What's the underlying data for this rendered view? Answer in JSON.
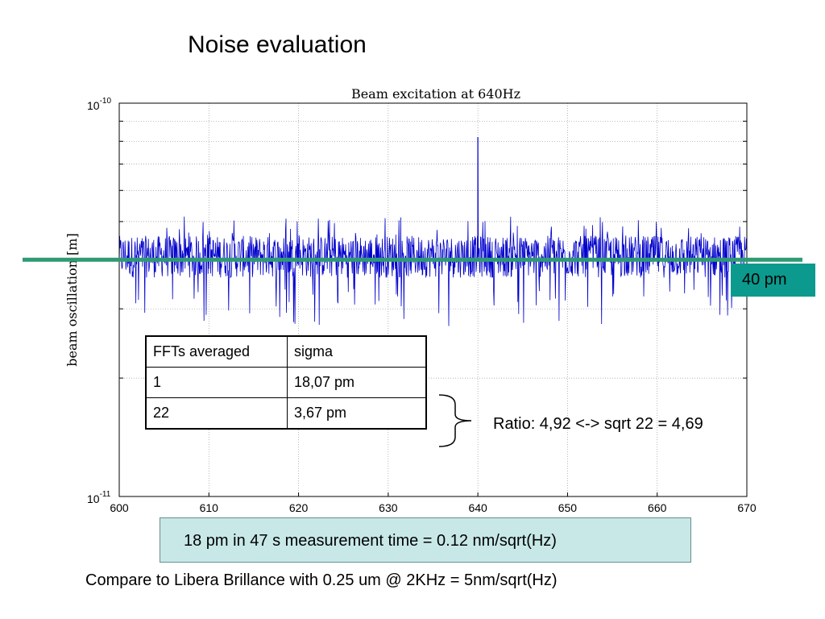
{
  "slide": {
    "title": "Noise evaluation",
    "marker_label": "40 pm",
    "ratio_text": "Ratio: 4,92 <-> sqrt 22 = 4,69",
    "result_text": "18 pm in 47 s measurement time = 0.12 nm/sqrt(Hz)",
    "compare_text": "Compare to Libera Brillance with 0.25 um @ 2KHz = 5nm/sqrt(Hz)"
  },
  "table": {
    "headers": [
      "FFTs averaged",
      "sigma"
    ],
    "rows": [
      [
        "1",
        "18,07 pm"
      ],
      [
        "22",
        "3,67 pm"
      ]
    ]
  },
  "colors": {
    "series": "#0000cc",
    "marker_line": "#2e9a74",
    "marker_box": "#0b9a8d",
    "result_box": "#c8e8e8"
  },
  "chart_data": {
    "type": "line",
    "title": "Beam excitation at 640Hz",
    "xlabel": "",
    "ylabel": "beam oscillation [m]",
    "xlim": [
      600,
      670
    ],
    "ylim": [
      1e-11,
      1e-10
    ],
    "yscale": "log",
    "grid": true,
    "x_ticks": [
      "600",
      "610",
      "620",
      "630",
      "640",
      "650",
      "660",
      "670"
    ],
    "y_ticks": [
      {
        "base": "10",
        "exp": "-10"
      },
      {
        "base": "10",
        "exp": "-11"
      }
    ],
    "series": [
      {
        "noise_band": {
          "center": 4e-11,
          "upper": 4.6e-11,
          "lower": 3.6e-11
        },
        "x": [
          600,
          605,
          610,
          615,
          620,
          625,
          630,
          635,
          639.5,
          640,
          640.5,
          645,
          650,
          655,
          660,
          663.5,
          667,
          670
        ],
        "y": [
          4e-11,
          4.1e-11,
          3.9e-11,
          4.1e-11,
          4e-11,
          3.9e-11,
          4.1e-11,
          4e-11,
          4e-11,
          8.2e-11,
          4e-11,
          4e-11,
          4.1e-11,
          3.9e-11,
          4e-11,
          3.3e-11,
          4e-11,
          4e-11
        ]
      }
    ],
    "reference_line": 4e-11
  }
}
